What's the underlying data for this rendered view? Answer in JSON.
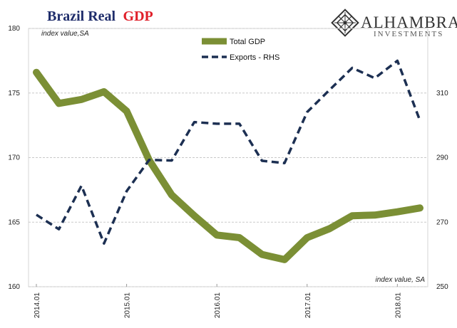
{
  "header": {
    "title_part1": "Brazil Real",
    "title_part2": "GDP",
    "brand_name": "ALHAMBRA",
    "brand_sub": "INVESTMENTS"
  },
  "chart_data": {
    "type": "line",
    "left_axis_unit": "index value,SA",
    "right_axis_unit": "index value, SA",
    "x": [
      "2014.01",
      "2014.02",
      "2014.03",
      "2014.04",
      "2015.01",
      "2015.02",
      "2015.03",
      "2015.04",
      "2016.01",
      "2016.02",
      "2016.03",
      "2016.04",
      "2017.01",
      "2017.02",
      "2017.03",
      "2017.04",
      "2018.01",
      "2018.02"
    ],
    "x_tick_labels": [
      "2014.01",
      "2015.01",
      "2016.01",
      "2017.01",
      "2018.01"
    ],
    "x_tick_positions": [
      0,
      4,
      8,
      12,
      16
    ],
    "y_left": {
      "range": [
        160,
        180
      ],
      "ticks": [
        "160",
        "165",
        "170",
        "175",
        "180"
      ]
    },
    "y_right": {
      "range": [
        250,
        330
      ],
      "ticks": [
        "250",
        "270",
        "290",
        "310"
      ]
    },
    "grid": true,
    "legend_position": "top-center",
    "series": [
      {
        "name": "Total GDP",
        "axis": "left",
        "style": "solid",
        "color": "#7b8f35",
        "values": [
          176.6,
          174.2,
          174.5,
          175.1,
          173.6,
          169.8,
          167.1,
          165.5,
          164.0,
          163.8,
          162.5,
          162.1,
          163.8,
          164.5,
          165.5,
          165.55,
          165.8,
          166.1
        ]
      },
      {
        "name": "Exports - RHS",
        "axis": "right",
        "style": "dashed",
        "color": "#1c2f52",
        "values": [
          272.3,
          267.8,
          281.3,
          263.4,
          279.6,
          289.3,
          289.1,
          301.0,
          300.5,
          300.5,
          289.0,
          288.3,
          304.1,
          311.0,
          317.8,
          314.6,
          320.0,
          301.5
        ]
      }
    ]
  }
}
